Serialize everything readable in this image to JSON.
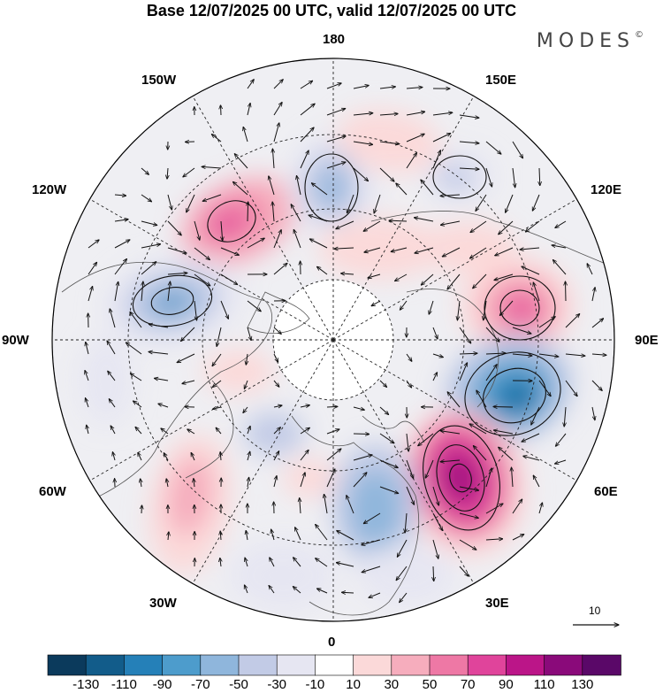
{
  "title": "Base 12/07/2025 00 UTC, valid 12/07/2025 00 UTC",
  "brand": {
    "name": "MODES",
    "mark": "©"
  },
  "longitude_labels": {
    "top": "180",
    "bottom": "0",
    "left": "90W",
    "right": "90E",
    "nw_upper": "150W",
    "nw_lower": "120W",
    "ne_upper": "150E",
    "ne_lower": "120E",
    "sw_upper": "60W",
    "sw_lower": "30W",
    "se_upper": "60E",
    "se_lower": "30E"
  },
  "wind_scale": {
    "label": "10"
  },
  "colorbar": {
    "labels": [
      "-130",
      "-110",
      "-90",
      "-70",
      "-50",
      "-30",
      "-10",
      "10",
      "30",
      "50",
      "70",
      "90",
      "110",
      "130"
    ],
    "colors": [
      "#0b3a5c",
      "#125c8a",
      "#2580b8",
      "#4d9ccc",
      "#8fb6dc",
      "#c2cbe6",
      "#e6e6f2",
      "#ffffff",
      "#fbd9d9",
      "#f6adbd",
      "#ee78a5",
      "#e0449b",
      "#bb1588",
      "#8a0a7a",
      "#5a0868"
    ]
  },
  "colors": {
    "coast": "#555555",
    "arrow": "#111111",
    "contour": "#111111",
    "grid": "#222222"
  }
}
